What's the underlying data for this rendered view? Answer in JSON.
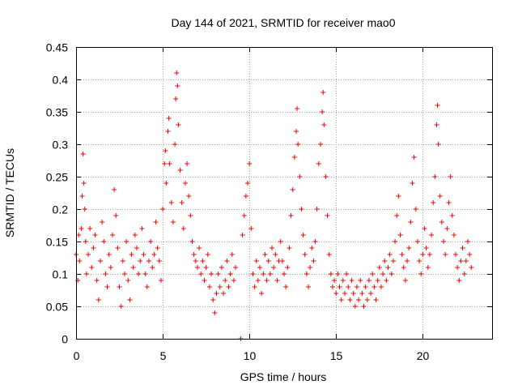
{
  "chart_data": {
    "type": "scatter",
    "title": "Day 144 of 2021, SRMTID for receiver mao0",
    "xlabel": "GPS time / hours",
    "ylabel": "SRMTID / TECUs",
    "xlim": [
      0,
      24
    ],
    "ylim": [
      0,
      0.45
    ],
    "x_ticks": [
      0,
      5,
      10,
      15,
      20
    ],
    "x_tick_labels": [
      "0",
      "5",
      "10",
      "15",
      "20"
    ],
    "y_ticks": [
      0,
      0.05,
      0.1,
      0.15,
      0.2,
      0.25,
      0.3,
      0.35,
      0.4,
      0.45
    ],
    "y_tick_labels": [
      "0",
      "0.05",
      "0.1",
      "0.15",
      "0.2",
      "0.25",
      "0.3",
      "0.35",
      "0.4",
      "0.45"
    ],
    "grid": true,
    "marker": "plus",
    "color": "#ff0000",
    "series": [
      {
        "name": "SRMTID",
        "points": [
          [
            0.0,
            0.13
          ],
          [
            0.1,
            0.09
          ],
          [
            0.15,
            0.16
          ],
          [
            0.2,
            0.12
          ],
          [
            0.3,
            0.17
          ],
          [
            0.35,
            0.22
          ],
          [
            0.4,
            0.285
          ],
          [
            0.45,
            0.24
          ],
          [
            0.5,
            0.2
          ],
          [
            0.55,
            0.15
          ],
          [
            0.6,
            0.1
          ],
          [
            0.7,
            0.13
          ],
          [
            0.8,
            0.17
          ],
          [
            0.9,
            0.11
          ],
          [
            1.0,
            0.14
          ],
          [
            1.1,
            0.16
          ],
          [
            1.2,
            0.09
          ],
          [
            1.3,
            0.06
          ],
          [
            1.4,
            0.12
          ],
          [
            1.5,
            0.18
          ],
          [
            1.6,
            0.15
          ],
          [
            1.7,
            0.1
          ],
          [
            1.8,
            0.08
          ],
          [
            1.9,
            0.13
          ],
          [
            2.0,
            0.11
          ],
          [
            2.1,
            0.16
          ],
          [
            2.2,
            0.23
          ],
          [
            2.3,
            0.19
          ],
          [
            2.4,
            0.14
          ],
          [
            2.5,
            0.08
          ],
          [
            2.6,
            0.05
          ],
          [
            2.7,
            0.12
          ],
          [
            2.8,
            0.1
          ],
          [
            2.9,
            0.15
          ],
          [
            3.0,
            0.09
          ],
          [
            3.1,
            0.06
          ],
          [
            3.2,
            0.13
          ],
          [
            3.3,
            0.11
          ],
          [
            3.4,
            0.16
          ],
          [
            3.5,
            0.14
          ],
          [
            3.6,
            0.1
          ],
          [
            3.7,
            0.12
          ],
          [
            3.8,
            0.17
          ],
          [
            3.9,
            0.13
          ],
          [
            4.0,
            0.1
          ],
          [
            4.1,
            0.08
          ],
          [
            4.2,
            0.12
          ],
          [
            4.3,
            0.15
          ],
          [
            4.4,
            0.11
          ],
          [
            4.5,
            0.13
          ],
          [
            4.6,
            0.18
          ],
          [
            4.7,
            0.14
          ],
          [
            4.8,
            0.12
          ],
          [
            4.9,
            0.09
          ],
          [
            5.0,
            0.2
          ],
          [
            5.1,
            0.27
          ],
          [
            5.15,
            0.29
          ],
          [
            5.2,
            0.24
          ],
          [
            5.3,
            0.32
          ],
          [
            5.35,
            0.34
          ],
          [
            5.4,
            0.27
          ],
          [
            5.5,
            0.21
          ],
          [
            5.6,
            0.18
          ],
          [
            5.7,
            0.3
          ],
          [
            5.75,
            0.37
          ],
          [
            5.8,
            0.41
          ],
          [
            5.85,
            0.39
          ],
          [
            5.9,
            0.33
          ],
          [
            6.0,
            0.26
          ],
          [
            6.1,
            0.21
          ],
          [
            6.2,
            0.17
          ],
          [
            6.3,
            0.24
          ],
          [
            6.4,
            0.27
          ],
          [
            6.5,
            0.22
          ],
          [
            6.6,
            0.19
          ],
          [
            6.7,
            0.15
          ],
          [
            6.8,
            0.13
          ],
          [
            6.9,
            0.12
          ],
          [
            7.0,
            0.11
          ],
          [
            7.1,
            0.14
          ],
          [
            7.2,
            0.1
          ],
          [
            7.3,
            0.12
          ],
          [
            7.4,
            0.09
          ],
          [
            7.5,
            0.11
          ],
          [
            7.6,
            0.13
          ],
          [
            7.7,
            0.08
          ],
          [
            7.8,
            0.1
          ],
          [
            7.9,
            0.06
          ],
          [
            8.0,
            0.04
          ],
          [
            8.1,
            0.07
          ],
          [
            8.2,
            0.1
          ],
          [
            8.3,
            0.08
          ],
          [
            8.4,
            0.11
          ],
          [
            8.5,
            0.07
          ],
          [
            8.6,
            0.09
          ],
          [
            8.7,
            0.12
          ],
          [
            8.8,
            0.08
          ],
          [
            8.9,
            0.1
          ],
          [
            9.0,
            0.13
          ],
          [
            9.1,
            0.09
          ],
          [
            9.2,
            0.11
          ],
          [
            9.5,
            0.0
          ],
          [
            9.6,
            0.16
          ],
          [
            9.7,
            0.19
          ],
          [
            9.8,
            0.22
          ],
          [
            9.9,
            0.24
          ],
          [
            10.0,
            0.27
          ],
          [
            10.1,
            0.17
          ],
          [
            10.2,
            0.1
          ],
          [
            10.3,
            0.08
          ],
          [
            10.4,
            0.12
          ],
          [
            10.5,
            0.09
          ],
          [
            10.6,
            0.11
          ],
          [
            10.7,
            0.07
          ],
          [
            10.8,
            0.1
          ],
          [
            10.9,
            0.13
          ],
          [
            11.0,
            0.09
          ],
          [
            11.1,
            0.12
          ],
          [
            11.2,
            0.1
          ],
          [
            11.3,
            0.14
          ],
          [
            11.4,
            0.11
          ],
          [
            11.5,
            0.13
          ],
          [
            11.6,
            0.09
          ],
          [
            11.7,
            0.12
          ],
          [
            11.8,
            0.15
          ],
          [
            11.9,
            0.12
          ],
          [
            12.0,
            0.1
          ],
          [
            12.1,
            0.08
          ],
          [
            12.2,
            0.11
          ],
          [
            12.3,
            0.14
          ],
          [
            12.4,
            0.19
          ],
          [
            12.5,
            0.23
          ],
          [
            12.6,
            0.28
          ],
          [
            12.7,
            0.32
          ],
          [
            12.75,
            0.355
          ],
          [
            12.8,
            0.3
          ],
          [
            12.9,
            0.25
          ],
          [
            13.0,
            0.2
          ],
          [
            13.1,
            0.16
          ],
          [
            13.2,
            0.13
          ],
          [
            13.3,
            0.1
          ],
          [
            13.4,
            0.08
          ],
          [
            13.5,
            0.11
          ],
          [
            13.6,
            0.14
          ],
          [
            13.7,
            0.12
          ],
          [
            13.8,
            0.15
          ],
          [
            13.9,
            0.2
          ],
          [
            14.0,
            0.27
          ],
          [
            14.1,
            0.3
          ],
          [
            14.2,
            0.35
          ],
          [
            14.25,
            0.38
          ],
          [
            14.3,
            0.33
          ],
          [
            14.4,
            0.25
          ],
          [
            14.5,
            0.19
          ],
          [
            14.6,
            0.13
          ],
          [
            14.7,
            0.1
          ],
          [
            14.8,
            0.08
          ],
          [
            14.9,
            0.09
          ],
          [
            15.0,
            0.07
          ],
          [
            15.1,
            0.1
          ],
          [
            15.2,
            0.08
          ],
          [
            15.3,
            0.06
          ],
          [
            15.4,
            0.09
          ],
          [
            15.5,
            0.07
          ],
          [
            15.6,
            0.1
          ],
          [
            15.7,
            0.08
          ],
          [
            15.8,
            0.06
          ],
          [
            15.9,
            0.09
          ],
          [
            16.0,
            0.07
          ],
          [
            16.1,
            0.05
          ],
          [
            16.2,
            0.08
          ],
          [
            16.3,
            0.06
          ],
          [
            16.4,
            0.09
          ],
          [
            16.5,
            0.07
          ],
          [
            16.6,
            0.05
          ],
          [
            16.7,
            0.08
          ],
          [
            16.8,
            0.06
          ],
          [
            16.9,
            0.09
          ],
          [
            17.0,
            0.07
          ],
          [
            17.1,
            0.1
          ],
          [
            17.2,
            0.08
          ],
          [
            17.3,
            0.06
          ],
          [
            17.4,
            0.09
          ],
          [
            17.5,
            0.11
          ],
          [
            17.6,
            0.08
          ],
          [
            17.7,
            0.1
          ],
          [
            17.8,
            0.12
          ],
          [
            17.9,
            0.09
          ],
          [
            18.0,
            0.11
          ],
          [
            18.1,
            0.13
          ],
          [
            18.2,
            0.1
          ],
          [
            18.3,
            0.12
          ],
          [
            18.4,
            0.15
          ],
          [
            18.5,
            0.19
          ],
          [
            18.6,
            0.22
          ],
          [
            18.7,
            0.16
          ],
          [
            18.8,
            0.13
          ],
          [
            18.9,
            0.11
          ],
          [
            19.0,
            0.09
          ],
          [
            19.1,
            0.12
          ],
          [
            19.2,
            0.14
          ],
          [
            19.3,
            0.18
          ],
          [
            19.4,
            0.24
          ],
          [
            19.5,
            0.28
          ],
          [
            19.6,
            0.2
          ],
          [
            19.7,
            0.15
          ],
          [
            19.8,
            0.12
          ],
          [
            19.9,
            0.1
          ],
          [
            20.0,
            0.13
          ],
          [
            20.1,
            0.17
          ],
          [
            20.2,
            0.14
          ],
          [
            20.3,
            0.11
          ],
          [
            20.4,
            0.13
          ],
          [
            20.5,
            0.16
          ],
          [
            20.6,
            0.21
          ],
          [
            20.7,
            0.25
          ],
          [
            20.8,
            0.33
          ],
          [
            20.85,
            0.36
          ],
          [
            20.9,
            0.3
          ],
          [
            21.0,
            0.22
          ],
          [
            21.1,
            0.18
          ],
          [
            21.2,
            0.15
          ],
          [
            21.3,
            0.13
          ],
          [
            21.4,
            0.17
          ],
          [
            21.5,
            0.21
          ],
          [
            21.6,
            0.25
          ],
          [
            21.7,
            0.19
          ],
          [
            21.8,
            0.16
          ],
          [
            21.9,
            0.13
          ],
          [
            22.0,
            0.11
          ],
          [
            22.1,
            0.09
          ],
          [
            22.2,
            0.12
          ],
          [
            22.3,
            0.14
          ],
          [
            22.4,
            0.1
          ],
          [
            22.5,
            0.12
          ],
          [
            22.6,
            0.15
          ],
          [
            22.7,
            0.13
          ],
          [
            22.8,
            0.11
          ]
        ]
      }
    ]
  }
}
